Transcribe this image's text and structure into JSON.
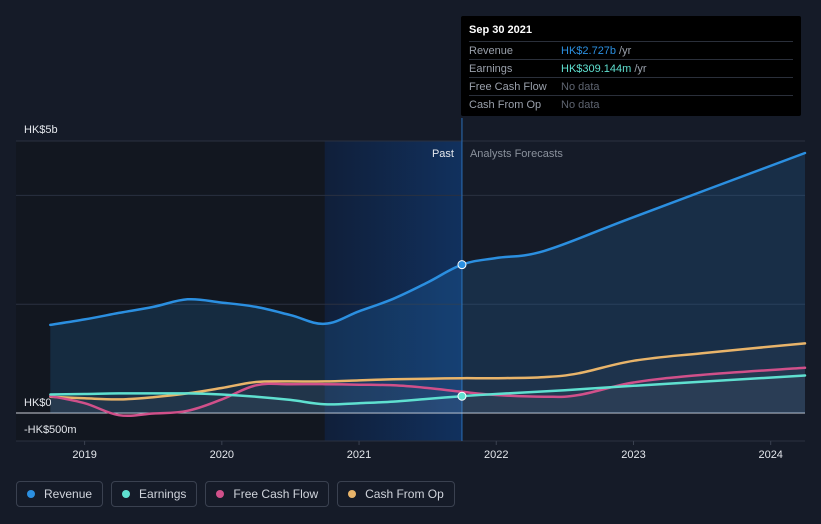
{
  "chart_data": {
    "type": "area",
    "title": "",
    "y_axis": {
      "top_label": "HK$5b",
      "zero_label": "HK$0",
      "bottom_label": "-HK$500m",
      "ylim_m": [
        -500,
        5000
      ]
    },
    "x_axis": {
      "ticks": [
        "2019",
        "2020",
        "2021",
        "2022",
        "2023",
        "2024"
      ],
      "tick_values": [
        2019,
        2020,
        2021,
        2022,
        2023,
        2024
      ],
      "xlim": [
        2018.5,
        2024.25
      ]
    },
    "past_label": "Past",
    "forecast_label": "Analysts Forecasts",
    "highlight_start": 2020.75,
    "divider_x": 2021.75,
    "series": [
      {
        "name": "Revenue",
        "color": "#2b8fe0",
        "fill": true,
        "points": [
          [
            2018.75,
            1620
          ],
          [
            2019,
            1720
          ],
          [
            2019.25,
            1840
          ],
          [
            2019.5,
            1950
          ],
          [
            2019.75,
            2090
          ],
          [
            2020,
            2030
          ],
          [
            2020.25,
            1950
          ],
          [
            2020.5,
            1800
          ],
          [
            2020.75,
            1640
          ],
          [
            2021,
            1870
          ],
          [
            2021.25,
            2100
          ],
          [
            2021.5,
            2400
          ],
          [
            2021.75,
            2727
          ],
          [
            2022,
            2850
          ],
          [
            2022.35,
            2980
          ],
          [
            2023,
            3600
          ],
          [
            2024.25,
            4780
          ]
        ]
      },
      {
        "name": "Earnings",
        "color": "#5fe0d0",
        "fill": false,
        "points": [
          [
            2018.75,
            340
          ],
          [
            2019,
            350
          ],
          [
            2019.25,
            360
          ],
          [
            2019.5,
            360
          ],
          [
            2019.75,
            360
          ],
          [
            2020,
            340
          ],
          [
            2020.25,
            300
          ],
          [
            2020.5,
            240
          ],
          [
            2020.75,
            160
          ],
          [
            2021,
            180
          ],
          [
            2021.25,
            210
          ],
          [
            2021.5,
            260
          ],
          [
            2021.75,
            309
          ],
          [
            2022,
            350
          ],
          [
            2022.5,
            420
          ],
          [
            2023,
            500
          ],
          [
            2024.25,
            690
          ]
        ]
      },
      {
        "name": "Free Cash Flow",
        "color": "#d0508a",
        "fill": false,
        "points": [
          [
            2018.75,
            310
          ],
          [
            2019,
            180
          ],
          [
            2019.25,
            -40
          ],
          [
            2019.5,
            -10
          ],
          [
            2019.75,
            40
          ],
          [
            2020,
            250
          ],
          [
            2020.25,
            510
          ],
          [
            2020.5,
            530
          ],
          [
            2020.75,
            530
          ],
          [
            2021,
            520
          ],
          [
            2021.25,
            510
          ],
          [
            2021.5,
            460
          ],
          [
            2021.75,
            390
          ],
          [
            2022,
            330
          ],
          [
            2022.35,
            300
          ],
          [
            2022.6,
            330
          ],
          [
            2023,
            560
          ],
          [
            2023.5,
            700
          ],
          [
            2024.25,
            830
          ]
        ]
      },
      {
        "name": "Cash From Op",
        "color": "#e8b46a",
        "fill": false,
        "points": [
          [
            2018.75,
            300
          ],
          [
            2019,
            270
          ],
          [
            2019.25,
            250
          ],
          [
            2019.5,
            290
          ],
          [
            2019.75,
            360
          ],
          [
            2020,
            460
          ],
          [
            2020.25,
            570
          ],
          [
            2020.5,
            580
          ],
          [
            2020.75,
            580
          ],
          [
            2021,
            600
          ],
          [
            2021.25,
            620
          ],
          [
            2021.5,
            630
          ],
          [
            2021.75,
            640
          ],
          [
            2022,
            640
          ],
          [
            2022.35,
            660
          ],
          [
            2022.6,
            730
          ],
          [
            2023,
            960
          ],
          [
            2023.5,
            1100
          ],
          [
            2024.25,
            1280
          ]
        ]
      }
    ],
    "tooltip_marker_x": 2021.75
  },
  "tooltip": {
    "date": "Sep 30 2021",
    "rows": [
      {
        "label": "Revenue",
        "value": "HK$2.727b",
        "unit": "/yr",
        "color": "#2b8fe0"
      },
      {
        "label": "Earnings",
        "value": "HK$309.144m",
        "unit": "/yr",
        "color": "#5fe0d0"
      },
      {
        "label": "Free Cash Flow",
        "value": "No data",
        "unit": "",
        "color": "#5e6470"
      },
      {
        "label": "Cash From Op",
        "value": "No data",
        "unit": "",
        "color": "#5e6470"
      }
    ]
  },
  "legend": [
    {
      "label": "Revenue",
      "color": "#2b8fe0"
    },
    {
      "label": "Earnings",
      "color": "#5fe0d0"
    },
    {
      "label": "Free Cash Flow",
      "color": "#d0508a"
    },
    {
      "label": "Cash From Op",
      "color": "#e8b46a"
    }
  ]
}
